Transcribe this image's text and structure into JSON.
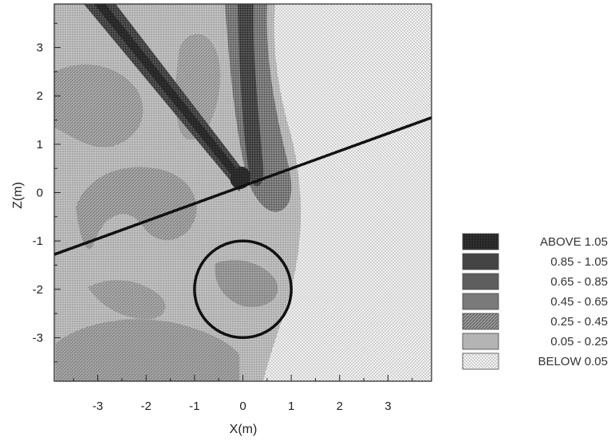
{
  "chart_data": {
    "type": "heatmap",
    "title": "",
    "xlabel": "X(m)",
    "ylabel": "Z(m)",
    "xlim": [
      -3.9,
      3.9
    ],
    "ylim": [
      -3.9,
      3.9
    ],
    "xticks": [
      -3,
      -2,
      -1,
      0,
      1,
      2,
      3
    ],
    "yticks": [
      -3,
      -2,
      -1,
      0,
      1,
      2,
      3
    ],
    "xtick_labels": [
      "-3",
      "-2",
      "-1",
      "0",
      "1",
      "2",
      "3"
    ],
    "ytick_labels": [
      "-3",
      "-2",
      "-1",
      "0",
      "1",
      "2",
      "3"
    ],
    "grid": false,
    "legend_position": "right",
    "legend": [
      {
        "label": "ABOVE  1.05",
        "color": "#2a2a2a",
        "pattern": "dense"
      },
      {
        "label": "0.85 - 1.05",
        "color": "#444444",
        "pattern": "dots"
      },
      {
        "label": "0.65 - 0.85",
        "color": "#5e5e5e",
        "pattern": "dots"
      },
      {
        "label": "0.45 - 0.65",
        "color": "#7a7a7a",
        "pattern": "dots"
      },
      {
        "label": "0.25 - 0.45",
        "color": "#8e8e8e",
        "pattern": "hatch"
      },
      {
        "label": "0.05 - 0.25",
        "color": "#b4b4b4",
        "pattern": "dots"
      },
      {
        "label": "BELOW  0.05",
        "color": "#dedede",
        "pattern": "light"
      }
    ],
    "overlays": {
      "line": {
        "x": [
          -3.9,
          3.9
        ],
        "y": [
          -1.28,
          1.55
        ]
      },
      "circle": {
        "cx": 0.0,
        "cz": -2.0,
        "r": 1.0
      }
    },
    "regions": {
      "background_level": "BELOW  0.05",
      "field_level": "0.05 - 0.25",
      "mid_level": "0.25 - 0.45",
      "wave_level": "0.45 - 0.65",
      "dark_level": "0.85 - 1.05",
      "peak_level": "ABOVE  1.05"
    }
  }
}
